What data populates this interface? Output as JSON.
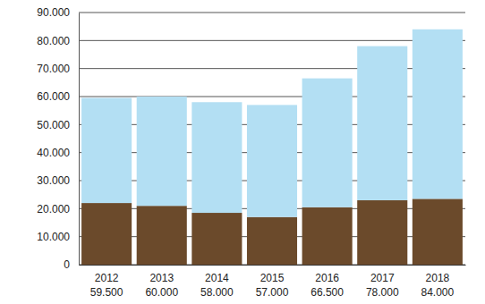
{
  "chart_data": {
    "type": "bar",
    "stacked": true,
    "grid": true,
    "categories": [
      "2012",
      "2013",
      "2014",
      "2015",
      "2016",
      "2017",
      "2018"
    ],
    "total_labels": [
      "59.500",
      "60.000",
      "58.000",
      "57.000",
      "66.500",
      "78.000",
      "84.000"
    ],
    "series": [
      {
        "color": "#6b4a2b",
        "values": [
          22000,
          21000,
          18500,
          17000,
          20500,
          23000,
          23500
        ]
      },
      {
        "color": "#b3dff3",
        "values": [
          37500,
          39000,
          39500,
          40000,
          46000,
          55000,
          60500
        ]
      }
    ],
    "ylim": [
      0,
      90000
    ],
    "yticks": [
      0,
      {
        "value": 10000,
        "label": "10.000"
      },
      {
        "value": 20000,
        "label": "20.000"
      },
      {
        "value": 30000,
        "label": "30.000"
      },
      {
        "value": 40000,
        "label": "40.000"
      },
      {
        "value": 50000,
        "label": "50.000"
      },
      {
        "value": 60000,
        "label": "60.000"
      },
      {
        "value": 70000,
        "label": "70.000"
      },
      {
        "value": 80000,
        "label": "80.000"
      },
      {
        "value": 90000,
        "label": "90.000"
      }
    ]
  }
}
